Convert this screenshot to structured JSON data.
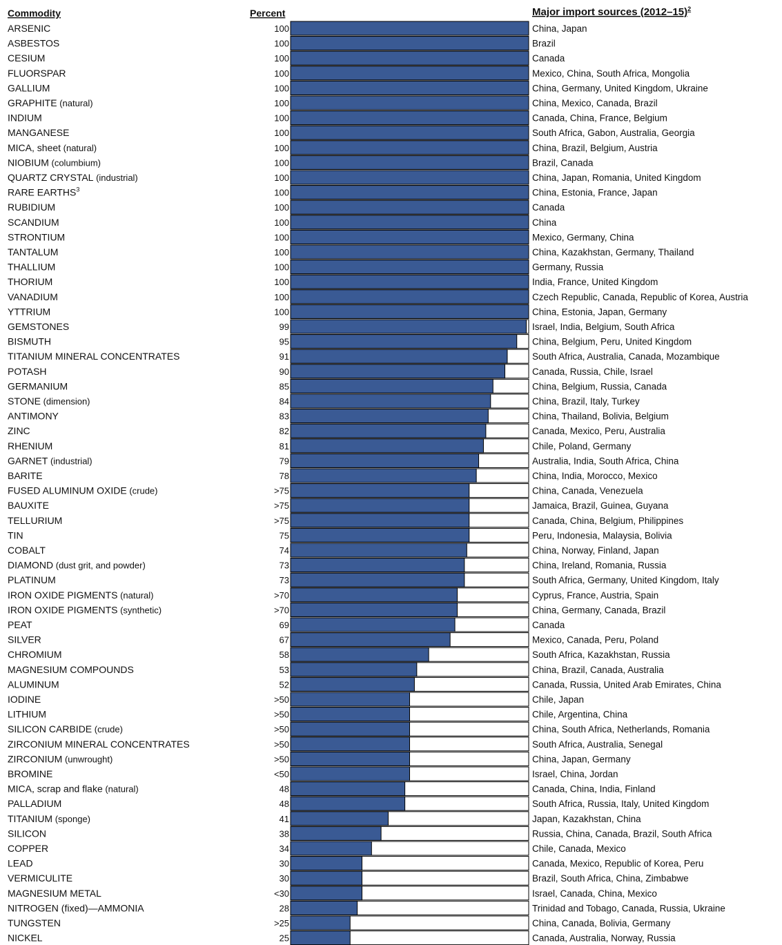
{
  "headers": {
    "commodity": "Commodity",
    "percent": "Percent",
    "sources": "Major import sources (2012–15)",
    "sources_sup": "2"
  },
  "colors": {
    "bar_fill": "#3a5a94",
    "bar_empty": "#ffffff",
    "bar_stroke": "#000000"
  },
  "chart_data": {
    "type": "bar",
    "orientation": "horizontal",
    "stacked": true,
    "xlim": [
      0,
      100
    ],
    "grid": false,
    "categories": [
      "ARSENIC",
      "ASBESTOS",
      "CESIUM",
      "FLUORSPAR",
      "GALLIUM",
      "GRAPHITE",
      "INDIUM",
      "MANGANESE",
      "MICA, sheet",
      "NIOBIUM",
      "QUARTZ CRYSTAL",
      "RARE EARTHS",
      "RUBIDIUM",
      "SCANDIUM",
      "STRONTIUM",
      "TANTALUM",
      "THALLIUM",
      "THORIUM",
      "VANADIUM",
      "YTTRIUM",
      "GEMSTONES",
      "BISMUTH",
      "TITANIUM MINERAL CONCENTRATES",
      "POTASH",
      "GERMANIUM",
      "STONE",
      "ANTIMONY",
      "ZINC",
      "RHENIUM",
      "GARNET",
      "BARITE",
      "FUSED ALUMINUM OXIDE",
      "BAUXITE",
      "TELLURIUM",
      "TIN",
      "COBALT",
      "DIAMOND",
      "PLATINUM",
      "IRON OXIDE PIGMENTS",
      "IRON OXIDE PIGMENTS",
      "PEAT",
      "SILVER",
      "CHROMIUM",
      "MAGNESIUM COMPOUNDS",
      "ALUMINUM",
      "IODINE",
      "LITHIUM",
      "SILICON CARBIDE",
      "ZIRCONIUM MINERAL CONCENTRATES",
      "ZIRCONIUM",
      "BROMINE",
      "MICA, scrap and flake",
      "PALLADIUM",
      "TITANIUM",
      "SILICON",
      "COPPER",
      "LEAD",
      "VERMICULITE",
      "MAGNESIUM METAL",
      "NITROGEN (fixed)—AMMONIA",
      "TUNGSTEN",
      "NICKEL"
    ],
    "values": [
      100,
      100,
      100,
      100,
      100,
      100,
      100,
      100,
      100,
      100,
      100,
      100,
      100,
      100,
      100,
      100,
      100,
      100,
      100,
      100,
      99,
      95,
      91,
      90,
      85,
      84,
      83,
      82,
      81,
      79,
      78,
      75,
      75,
      75,
      75,
      74,
      73,
      73,
      70,
      70,
      69,
      67,
      58,
      53,
      52,
      50,
      50,
      50,
      50,
      50,
      50,
      48,
      48,
      41,
      38,
      34,
      30,
      30,
      30,
      28,
      25,
      25
    ]
  },
  "rows": [
    {
      "name": "ARSENIC",
      "qual": "",
      "sup": "",
      "pct": "100",
      "src": "China, Japan"
    },
    {
      "name": "ASBESTOS",
      "qual": "",
      "sup": "",
      "pct": "100",
      "src": "Brazil"
    },
    {
      "name": "CESIUM",
      "qual": "",
      "sup": "",
      "pct": "100",
      "src": "Canada"
    },
    {
      "name": "FLUORSPAR",
      "qual": "",
      "sup": "",
      "pct": "100",
      "src": "Mexico, China, South Africa, Mongolia"
    },
    {
      "name": "GALLIUM",
      "qual": "",
      "sup": "",
      "pct": "100",
      "src": "China, Germany, United Kingdom, Ukraine"
    },
    {
      "name": "GRAPHITE",
      "qual": "(natural)",
      "sup": "",
      "pct": "100",
      "src": "China, Mexico, Canada, Brazil"
    },
    {
      "name": "INDIUM",
      "qual": "",
      "sup": "",
      "pct": "100",
      "src": "Canada, China, France, Belgium"
    },
    {
      "name": "MANGANESE",
      "qual": "",
      "sup": "",
      "pct": "100",
      "src": "South Africa, Gabon, Australia, Georgia"
    },
    {
      "name": "MICA, sheet",
      "qual": "(natural)",
      "sup": "",
      "pct": "100",
      "src": "China, Brazil, Belgium, Austria"
    },
    {
      "name": "NIOBIUM",
      "qual": "(columbium)",
      "sup": "",
      "pct": "100",
      "src": "Brazil, Canada"
    },
    {
      "name": "QUARTZ CRYSTAL",
      "qual": "(industrial)",
      "sup": "",
      "pct": "100",
      "src": "China, Japan, Romania, United Kingdom"
    },
    {
      "name": "RARE EARTHS",
      "qual": "",
      "sup": "3",
      "pct": "100",
      "src": "China, Estonia, France, Japan"
    },
    {
      "name": "RUBIDIUM",
      "qual": "",
      "sup": "",
      "pct": "100",
      "src": "Canada"
    },
    {
      "name": "SCANDIUM",
      "qual": "",
      "sup": "",
      "pct": "100",
      "src": "China"
    },
    {
      "name": "STRONTIUM",
      "qual": "",
      "sup": "",
      "pct": "100",
      "src": "Mexico, Germany, China"
    },
    {
      "name": "TANTALUM",
      "qual": "",
      "sup": "",
      "pct": "100",
      "src": "China, Kazakhstan, Germany, Thailand"
    },
    {
      "name": "THALLIUM",
      "qual": "",
      "sup": "",
      "pct": "100",
      "src": "Germany, Russia"
    },
    {
      "name": "THORIUM",
      "qual": "",
      "sup": "",
      "pct": "100",
      "src": "India, France, United Kingdom"
    },
    {
      "name": "VANADIUM",
      "qual": "",
      "sup": "",
      "pct": "100",
      "src": "Czech Republic, Canada, Republic of Korea, Austria"
    },
    {
      "name": "YTTRIUM",
      "qual": "",
      "sup": "",
      "pct": "100",
      "src": "China, Estonia, Japan, Germany"
    },
    {
      "name": "GEMSTONES",
      "qual": "",
      "sup": "",
      "pct": "99",
      "src": "Israel, India, Belgium, South Africa"
    },
    {
      "name": "BISMUTH",
      "qual": "",
      "sup": "",
      "pct": "95",
      "src": "China, Belgium, Peru, United Kingdom"
    },
    {
      "name": "TITANIUM MINERAL CONCENTRATES",
      "qual": "",
      "sup": "",
      "pct": "91",
      "src": "South Africa, Australia, Canada, Mozambique"
    },
    {
      "name": "POTASH",
      "qual": "",
      "sup": "",
      "pct": "90",
      "src": "Canada, Russia, Chile, Israel"
    },
    {
      "name": "GERMANIUM",
      "qual": "",
      "sup": "",
      "pct": "85",
      "src": "China, Belgium, Russia, Canada"
    },
    {
      "name": "STONE",
      "qual": "(dimension)",
      "sup": "",
      "pct": "84",
      "src": "China, Brazil, Italy, Turkey"
    },
    {
      "name": "ANTIMONY",
      "qual": "",
      "sup": "",
      "pct": "83",
      "src": "China, Thailand, Bolivia, Belgium"
    },
    {
      "name": "ZINC",
      "qual": "",
      "sup": "",
      "pct": "82",
      "src": "Canada, Mexico, Peru, Australia"
    },
    {
      "name": "RHENIUM",
      "qual": "",
      "sup": "",
      "pct": "81",
      "src": "Chile, Poland, Germany"
    },
    {
      "name": "GARNET",
      "qual": "(industrial)",
      "sup": "",
      "pct": "79",
      "src": "Australia, India, South Africa, China"
    },
    {
      "name": "BARITE",
      "qual": "",
      "sup": "",
      "pct": "78",
      "src": "China, India, Morocco, Mexico"
    },
    {
      "name": "FUSED ALUMINUM OXIDE",
      "qual": "(crude)",
      "sup": "",
      "pct": ">75",
      "src": "China, Canada, Venezuela"
    },
    {
      "name": "BAUXITE",
      "qual": "",
      "sup": "",
      "pct": ">75",
      "src": "Jamaica, Brazil, Guinea, Guyana"
    },
    {
      "name": "TELLURIUM",
      "qual": "",
      "sup": "",
      "pct": ">75",
      "src": "Canada, China, Belgium, Philippines"
    },
    {
      "name": "TIN",
      "qual": "",
      "sup": "",
      "pct": "75",
      "src": "Peru, Indonesia, Malaysia, Bolivia"
    },
    {
      "name": "COBALT",
      "qual": "",
      "sup": "",
      "pct": "74",
      "src": "China, Norway, Finland, Japan"
    },
    {
      "name": "DIAMOND",
      "qual": "(dust grit, and powder)",
      "sup": "",
      "pct": "73",
      "src": "China, Ireland, Romania, Russia"
    },
    {
      "name": "PLATINUM",
      "qual": "",
      "sup": "",
      "pct": "73",
      "src": "South Africa, Germany, United Kingdom, Italy"
    },
    {
      "name": "IRON OXIDE PIGMENTS",
      "qual": "(natural)",
      "sup": "",
      "pct": ">70",
      "src": "Cyprus, France, Austria, Spain"
    },
    {
      "name": "IRON OXIDE PIGMENTS",
      "qual": "(synthetic)",
      "sup": "",
      "pct": ">70",
      "src": "China, Germany, Canada, Brazil"
    },
    {
      "name": "PEAT",
      "qual": "",
      "sup": "",
      "pct": "69",
      "src": "Canada"
    },
    {
      "name": "SILVER",
      "qual": "",
      "sup": "",
      "pct": "67",
      "src": "Mexico, Canada, Peru, Poland"
    },
    {
      "name": "CHROMIUM",
      "qual": "",
      "sup": "",
      "pct": "58",
      "src": "South Africa, Kazakhstan, Russia"
    },
    {
      "name": "MAGNESIUM COMPOUNDS",
      "qual": "",
      "sup": "",
      "pct": "53",
      "src": "China, Brazil, Canada, Australia"
    },
    {
      "name": "ALUMINUM",
      "qual": "",
      "sup": "",
      "pct": "52",
      "src": "Canada, Russia, United Arab Emirates, China"
    },
    {
      "name": "IODINE",
      "qual": "",
      "sup": "",
      "pct": ">50",
      "src": "Chile, Japan"
    },
    {
      "name": "LITHIUM",
      "qual": "",
      "sup": "",
      "pct": ">50",
      "src": "Chile, Argentina, China"
    },
    {
      "name": "SILICON CARBIDE",
      "qual": "(crude)",
      "sup": "",
      "pct": ">50",
      "src": "China, South Africa, Netherlands, Romania"
    },
    {
      "name": "ZIRCONIUM MINERAL CONCENTRATES",
      "qual": "",
      "sup": "",
      "pct": ">50",
      "src": "South Africa, Australia, Senegal"
    },
    {
      "name": "ZIRCONIUM",
      "qual": "(unwrought)",
      "sup": "",
      "pct": ">50",
      "src": "China, Japan, Germany"
    },
    {
      "name": "BROMINE",
      "qual": "",
      "sup": "",
      "pct": "<50",
      "src": "Israel, China, Jordan"
    },
    {
      "name": "MICA, scrap and flake",
      "qual": "(natural)",
      "sup": "",
      "pct": "48",
      "src": "Canada, China, India, Finland"
    },
    {
      "name": "PALLADIUM",
      "qual": "",
      "sup": "",
      "pct": "48",
      "src": "South Africa, Russia, Italy, United Kingdom"
    },
    {
      "name": "TITANIUM",
      "qual": "(sponge)",
      "sup": "",
      "pct": "41",
      "src": "Japan, Kazakhstan, China"
    },
    {
      "name": "SILICON",
      "qual": "",
      "sup": "",
      "pct": "38",
      "src": "Russia, China, Canada, Brazil, South Africa"
    },
    {
      "name": "COPPER",
      "qual": "",
      "sup": "",
      "pct": "34",
      "src": "Chile, Canada, Mexico"
    },
    {
      "name": "LEAD",
      "qual": "",
      "sup": "",
      "pct": "30",
      "src": "Canada, Mexico, Republic of Korea, Peru"
    },
    {
      "name": "VERMICULITE",
      "qual": "",
      "sup": "",
      "pct": "30",
      "src": "Brazil, South Africa, China, Zimbabwe"
    },
    {
      "name": "MAGNESIUM METAL",
      "qual": "",
      "sup": "",
      "pct": "<30",
      "src": "Israel, Canada, China, Mexico"
    },
    {
      "name": "NITROGEN (fixed)—AMMONIA",
      "qual": "",
      "sup": "",
      "pct": "28",
      "src": "Trinidad and Tobago, Canada, Russia, Ukraine"
    },
    {
      "name": "TUNGSTEN",
      "qual": "",
      "sup": "",
      "pct": ">25",
      "src": "China, Canada, Bolivia, Germany"
    },
    {
      "name": "NICKEL",
      "qual": "",
      "sup": "",
      "pct": "25",
      "src": "Canada, Australia, Norway, Russia"
    }
  ]
}
